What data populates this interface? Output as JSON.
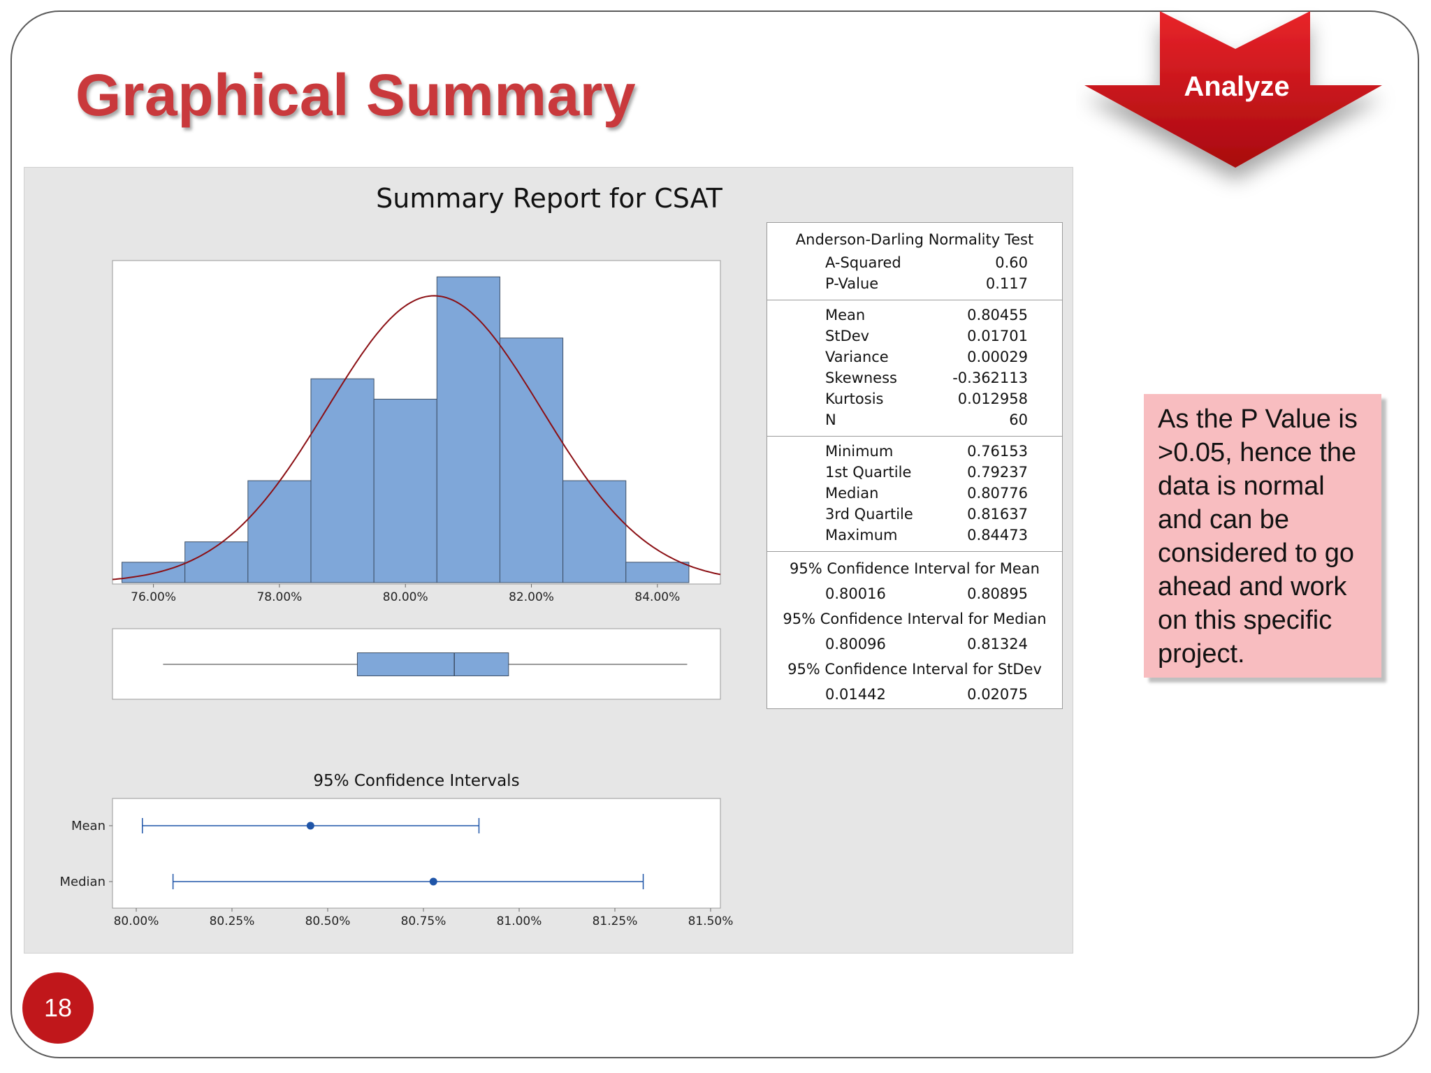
{
  "slide": {
    "title": "Graphical Summary",
    "phase_label": "Analyze",
    "page_number": "18",
    "note": "As the P Value is >0.05, hence the data is normal and can be considered to go ahead and work on this specific project.",
    "accent_color": "#c9393c",
    "badge_color": "#c0171b",
    "note_color": "#f8bdc0"
  },
  "chart_data": [
    {
      "type": "bar",
      "title": "Summary Report for CSAT",
      "xlabel": "",
      "ylabel": "",
      "bin_edges": [
        0.755,
        0.765,
        0.775,
        0.785,
        0.795,
        0.805,
        0.815,
        0.825,
        0.835,
        0.845
      ],
      "values": [
        1,
        2,
        5,
        10,
        9,
        15,
        12,
        5,
        1
      ],
      "xlim": [
        0.7535,
        0.85
      ],
      "ylim": [
        0,
        15.8
      ],
      "x_ticks": [
        0.76,
        0.78,
        0.8,
        0.82,
        0.84
      ],
      "x_tick_labels": [
        "76.00%",
        "78.00%",
        "80.00%",
        "82.00%",
        "84.00%"
      ],
      "series": [
        {
          "name": "",
          "kind": "histogram",
          "color": "#7fa7d9"
        },
        {
          "name": "",
          "kind": "normal-fit-curve",
          "mean": 0.80455,
          "stdev": 0.01701,
          "n": 60,
          "color": "#8b0f14"
        }
      ],
      "grid": false
    },
    {
      "type": "boxplot",
      "min": 0.76153,
      "q1": 0.79237,
      "median": 0.80776,
      "q3": 0.81637,
      "max": 0.84473,
      "xlim": [
        0.7535,
        0.85
      ],
      "color": "#7fa7d9"
    },
    {
      "type": "errorbar",
      "title": "95% Confidence Intervals",
      "categories": [
        "Mean",
        "Median"
      ],
      "points": [
        {
          "label": "Mean",
          "center": 0.80455,
          "low": 0.80016,
          "high": 0.80895
        },
        {
          "label": "Median",
          "center": 0.80776,
          "low": 0.80096,
          "high": 0.81324
        }
      ],
      "xlim": [
        0.7994,
        0.815
      ],
      "x_ticks": [
        0.8,
        0.8025,
        0.805,
        0.8075,
        0.81,
        0.8125,
        0.815
      ],
      "x_tick_labels": [
        "80.00%",
        "80.25%",
        "80.50%",
        "80.75%",
        "81.00%",
        "81.25%",
        "81.50%"
      ],
      "color": "#1f55a8"
    }
  ],
  "stats": {
    "normality_heading": "Anderson-Darling Normality Test",
    "normality": [
      {
        "label": "A-Squared",
        "value": "0.60"
      },
      {
        "label": "P-Value",
        "value": "0.117"
      }
    ],
    "moments": [
      {
        "label": "Mean",
        "value": "0.80455"
      },
      {
        "label": "StDev",
        "value": "0.01701"
      },
      {
        "label": "Variance",
        "value": "0.00029"
      },
      {
        "label": "Skewness",
        "value": "-0.362113"
      },
      {
        "label": "Kurtosis",
        "value": "0.012958"
      },
      {
        "label": "N",
        "value": "60"
      }
    ],
    "quartiles": [
      {
        "label": "Minimum",
        "value": "0.76153"
      },
      {
        "label": "1st Quartile",
        "value": "0.79237"
      },
      {
        "label": "Median",
        "value": "0.80776"
      },
      {
        "label": "3rd Quartile",
        "value": "0.81637"
      },
      {
        "label": "Maximum",
        "value": "0.84473"
      }
    ],
    "ci_mean": {
      "heading": "95% Confidence Interval for Mean",
      "low": "0.80016",
      "high": "0.80895"
    },
    "ci_median": {
      "heading": "95% Confidence Interval for Median",
      "low": "0.80096",
      "high": "0.81324"
    },
    "ci_stdev": {
      "heading": "95% Confidence Interval for StDev",
      "low": "0.01442",
      "high": "0.02075"
    }
  }
}
